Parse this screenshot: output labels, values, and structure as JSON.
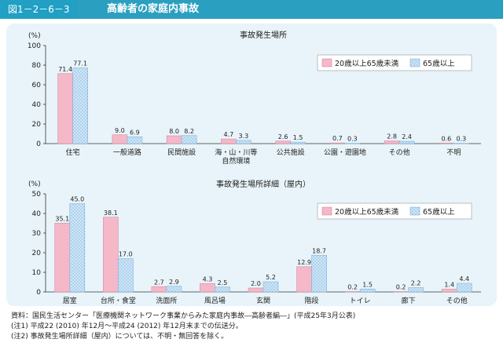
{
  "header": {
    "figure_no": "図1－2－6－3",
    "title": "高齢者の家庭内事故"
  },
  "chart_data": [
    {
      "type": "bar",
      "title": "事故発生場所",
      "ylabel": "(%)",
      "ylim": [
        0,
        100
      ],
      "yticks": [
        0,
        20,
        40,
        60,
        80,
        100
      ],
      "categories": [
        "住宅",
        "一般道路",
        "民間施設",
        "海・山・川等\n自然環境",
        "公共施設",
        "公園・遊園地",
        "その他",
        "不明"
      ],
      "series": [
        {
          "name": "20歳以上65歳未満",
          "values": [
            71.4,
            9.0,
            8.0,
            4.7,
            2.6,
            0.7,
            2.8,
            0.6
          ],
          "labels": [
            "71.4",
            "9.0",
            "8.0",
            "4.7",
            "2.6",
            "0.7",
            "2.8",
            "0.6"
          ],
          "color": "#f4b8c8"
        },
        {
          "name": "65歳以上",
          "values": [
            77.1,
            6.9,
            8.2,
            3.3,
            1.5,
            0.3,
            2.4,
            0.3
          ],
          "labels": [
            "77.1",
            "6.9",
            "8.2",
            "3.3",
            "1.5",
            "0.3",
            "2.4",
            "0.3"
          ],
          "color": "#c9e2f5"
        }
      ],
      "legend": "top-right"
    },
    {
      "type": "bar",
      "title": "事故発生場所詳細（屋内）",
      "ylabel": "(%)",
      "ylim": [
        0,
        50
      ],
      "yticks": [
        0,
        10,
        20,
        30,
        40,
        50
      ],
      "categories": [
        "居室",
        "台所・食堂",
        "洗面所",
        "風呂場",
        "玄関",
        "階段",
        "トイレ",
        "廊下",
        "その他"
      ],
      "series": [
        {
          "name": "20歳以上65歳未満",
          "values": [
            35.1,
            38.1,
            2.7,
            4.3,
            2.0,
            12.9,
            0.2,
            0.2,
            1.4
          ],
          "labels": [
            "35.1",
            "38.1",
            "2.7",
            "4.3",
            "2.0",
            "12.9",
            "0.2",
            "0.2",
            "1.4"
          ],
          "color": "#f4b8c8"
        },
        {
          "name": "65歳以上",
          "values": [
            45.0,
            17.0,
            2.9,
            2.5,
            5.2,
            18.7,
            1.5,
            2.2,
            4.4
          ],
          "labels": [
            "45.0",
            "17.0",
            "2.9",
            "2.5",
            "5.2",
            "18.7",
            "1.5",
            "2.2",
            "4.4"
          ],
          "color": "#c9e2f5"
        }
      ],
      "legend": "top-right"
    }
  ],
  "notes": [
    "資料：国民生活センター「医療機関ネットワーク事業からみた家庭内事故―高齢者編―」(平成25年3月公表)",
    "(注1) 平成22 (2010) 年12月～平成24 (2012) 年12月末までの伝送分。",
    "(注2) 事故発生場所詳細（屋内）については、不明・無回答を除く。"
  ]
}
